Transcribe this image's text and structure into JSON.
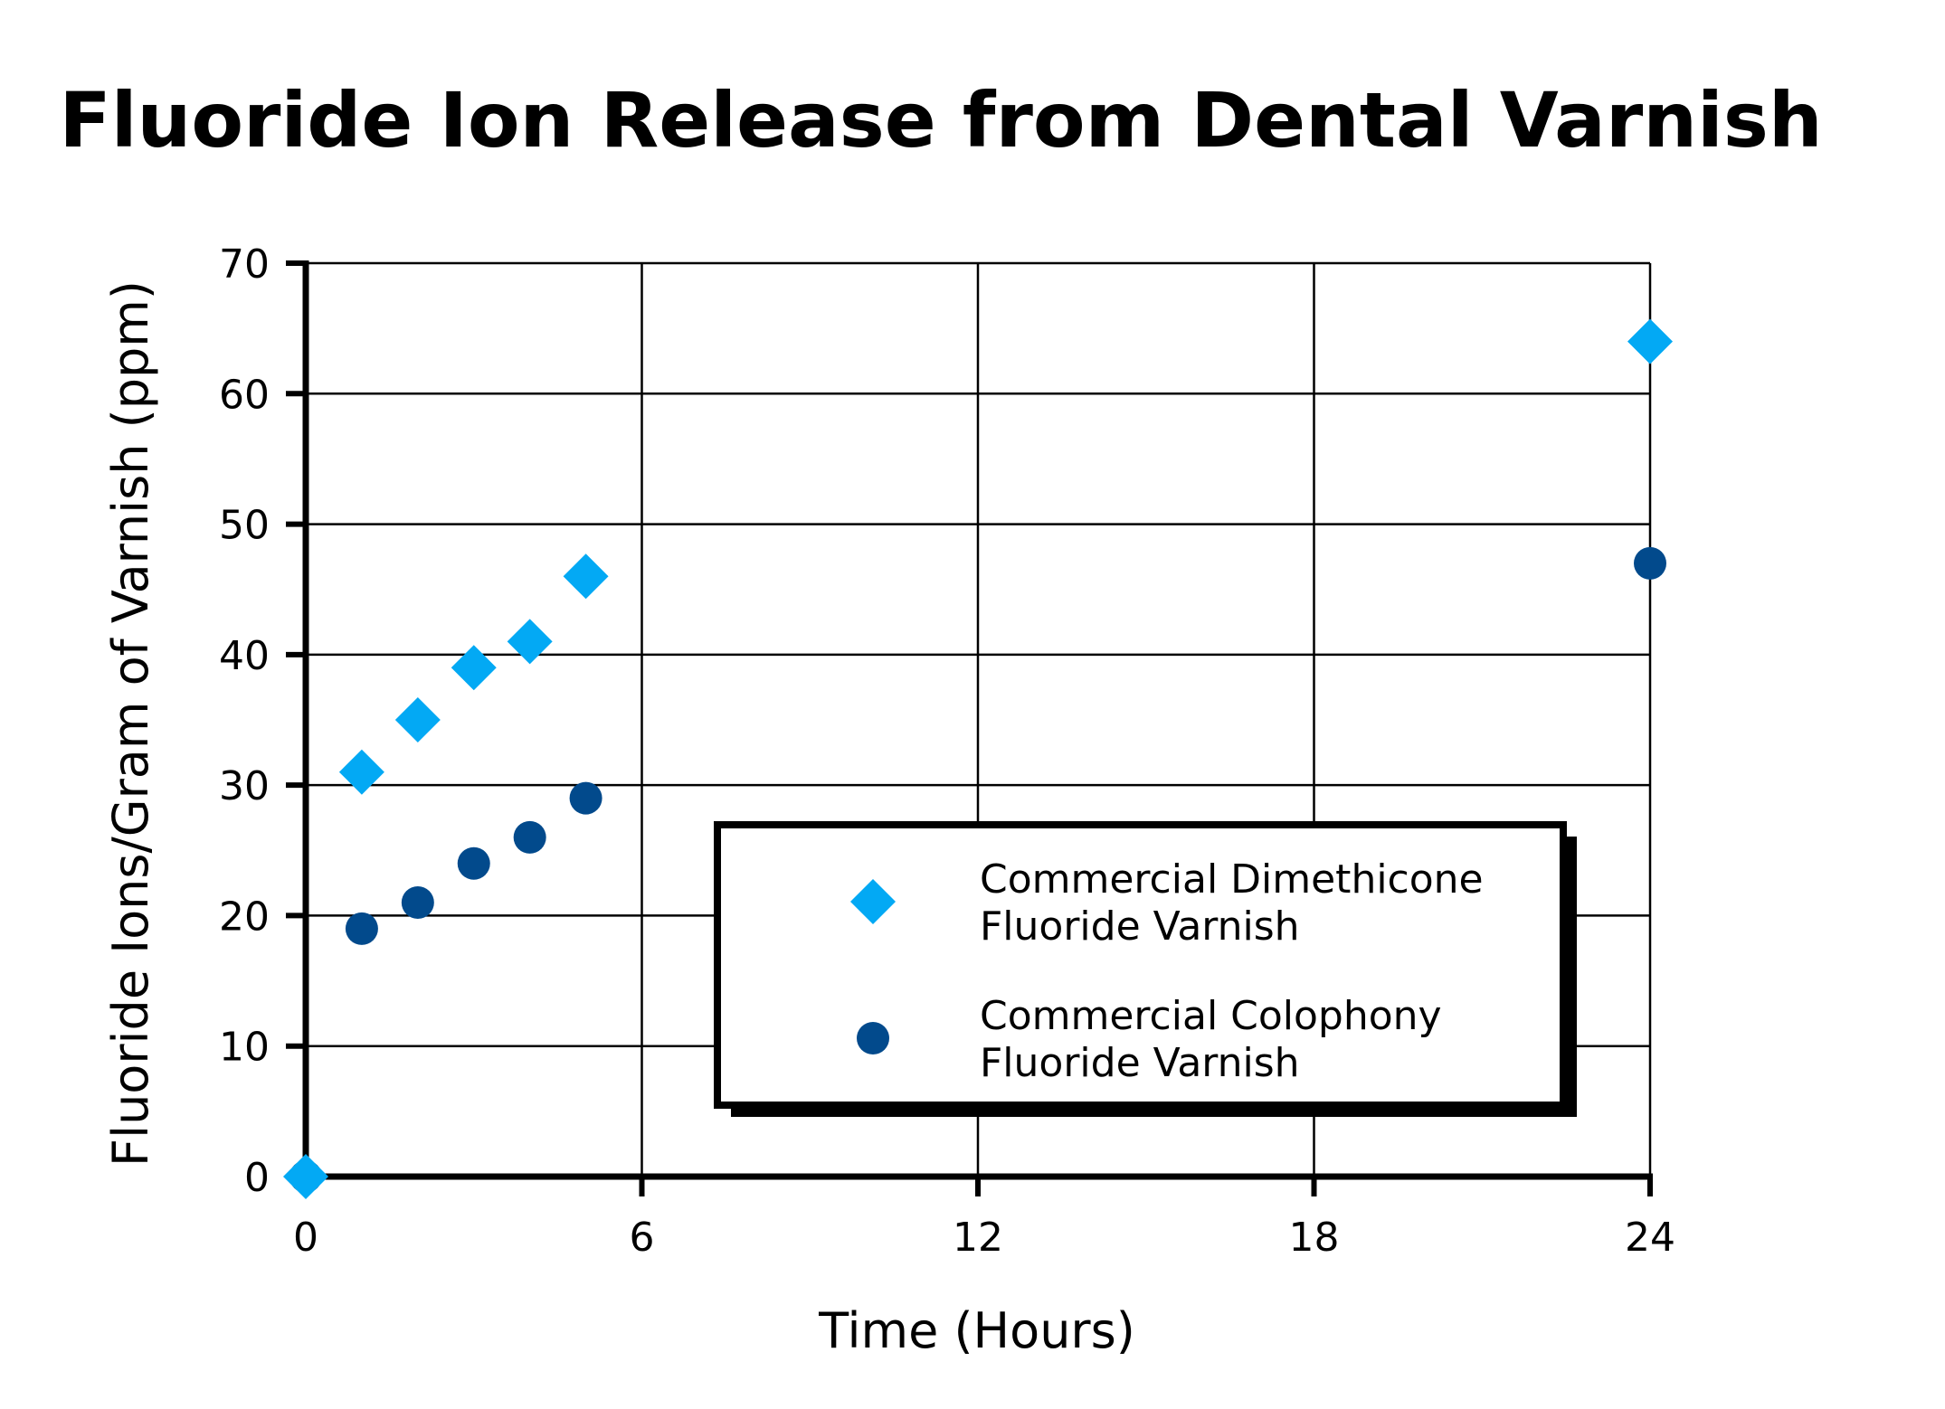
{
  "chart_data": {
    "type": "scatter",
    "title": "Fluoride Ion Release from Dental Varnish",
    "xlabel": "Time (Hours)",
    "ylabel": "Fluoride Ions/Gram of Varnish (ppm)",
    "xlim": [
      0,
      24
    ],
    "ylim": [
      0,
      70
    ],
    "x_ticks": [
      0,
      6,
      12,
      18,
      24
    ],
    "y_ticks": [
      0,
      10,
      20,
      30,
      40,
      50,
      60,
      70
    ],
    "grid": true,
    "legend_position": "bottom-right",
    "series": [
      {
        "name_lines": [
          "Commercial Dimethicone",
          "Fluoride Varnish"
        ],
        "marker": "diamond",
        "color": "#03a9f4",
        "points": [
          {
            "x": 0,
            "y": 0
          },
          {
            "x": 1,
            "y": 31
          },
          {
            "x": 2,
            "y": 35
          },
          {
            "x": 3,
            "y": 39
          },
          {
            "x": 4,
            "y": 41
          },
          {
            "x": 5,
            "y": 46
          },
          {
            "x": 24,
            "y": 64
          }
        ]
      },
      {
        "name_lines": [
          "Commercial Colophony",
          "Fluoride Varnish"
        ],
        "marker": "circle",
        "color": "#024a8c",
        "points": [
          {
            "x": 0,
            "y": 0
          },
          {
            "x": 1,
            "y": 19
          },
          {
            "x": 2,
            "y": 21
          },
          {
            "x": 3,
            "y": 24
          },
          {
            "x": 4,
            "y": 26
          },
          {
            "x": 5,
            "y": 29
          },
          {
            "x": 24,
            "y": 47
          }
        ]
      }
    ]
  }
}
